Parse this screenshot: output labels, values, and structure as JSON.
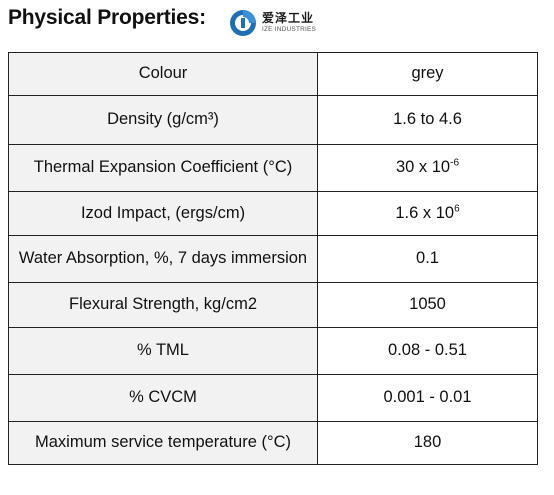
{
  "heading": "Physical Properties:",
  "logo": {
    "name_cn": "爱泽工业",
    "name_en": "IZE INDUSTRIES",
    "colors": {
      "ring": "#1f6fb2",
      "accent": "#3a8fd6"
    },
    "icon": "ize-logo-icon"
  },
  "table": {
    "rows": [
      {
        "property": "Colour",
        "value": "grey"
      },
      {
        "property": "Density  (g/cm³)",
        "value": "1.6 to 4.6"
      },
      {
        "property": "Thermal Expansion Coefficient (°C)",
        "value_base": "30 x 10",
        "value_exp": "-6"
      },
      {
        "property": "Izod Impact, (ergs/cm)",
        "value_base": "1.6 x 10",
        "value_exp": "6"
      },
      {
        "property": "Water Absorption, %, 7 days immersion",
        "value": "0.1"
      },
      {
        "property": "Flexural Strength, kg/cm2",
        "value": "1050"
      },
      {
        "property": "% TML",
        "value": "0.08 - 0.51"
      },
      {
        "property": "% CVCM",
        "value": "0.001 - 0.01"
      },
      {
        "property": "Maximum service temperature (°C)",
        "value": "180"
      }
    ],
    "colors": {
      "property_bg": "#f2f2f2",
      "border": "#222222"
    }
  }
}
